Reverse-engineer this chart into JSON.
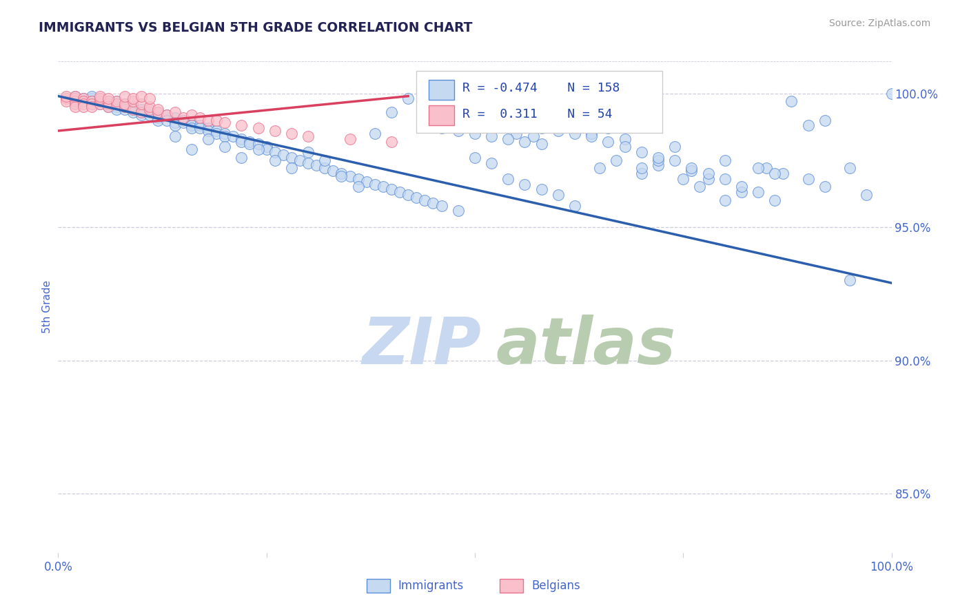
{
  "title": "IMMIGRANTS VS BELGIAN 5TH GRADE CORRELATION CHART",
  "source_text": "Source: ZipAtlas.com",
  "ylabel": "5th Grade",
  "xlim": [
    0.0,
    1.0
  ],
  "ylim": [
    0.828,
    1.012
  ],
  "yticks": [
    0.85,
    0.9,
    0.95,
    1.0
  ],
  "ytick_labels": [
    "85.0%",
    "90.0%",
    "95.0%",
    "100.0%"
  ],
  "blue_R": -0.474,
  "blue_N": 158,
  "pink_R": 0.311,
  "pink_N": 54,
  "blue_fill_color": "#c5d9f0",
  "pink_fill_color": "#f9c0cb",
  "blue_edge_color": "#5b8dd9",
  "pink_edge_color": "#e8708a",
  "blue_line_color": "#2b5fad",
  "pink_line_color": "#d94060",
  "background_color": "#ffffff",
  "title_color": "#222255",
  "axis_label_color": "#4466cc",
  "grid_color": "#ccccdd",
  "watermark_blue": "#c8d8f0",
  "watermark_green": "#b8ccb0",
  "legend_label_color": "#2244aa",
  "blue_scatter_x": [
    0.02,
    0.03,
    0.03,
    0.04,
    0.04,
    0.04,
    0.05,
    0.05,
    0.05,
    0.06,
    0.06,
    0.06,
    0.07,
    0.07,
    0.07,
    0.07,
    0.08,
    0.08,
    0.08,
    0.09,
    0.09,
    0.09,
    0.1,
    0.1,
    0.1,
    0.11,
    0.11,
    0.12,
    0.12,
    0.12,
    0.13,
    0.13,
    0.14,
    0.14,
    0.14,
    0.15,
    0.15,
    0.16,
    0.16,
    0.16,
    0.17,
    0.17,
    0.18,
    0.18,
    0.19,
    0.19,
    0.2,
    0.2,
    0.21,
    0.22,
    0.22,
    0.23,
    0.23,
    0.24,
    0.25,
    0.25,
    0.26,
    0.27,
    0.28,
    0.29,
    0.3,
    0.31,
    0.32,
    0.33,
    0.34,
    0.35,
    0.36,
    0.37,
    0.38,
    0.39,
    0.4,
    0.41,
    0.42,
    0.43,
    0.44,
    0.45,
    0.46,
    0.48,
    0.5,
    0.52,
    0.54,
    0.56,
    0.58,
    0.6,
    0.62,
    0.65,
    0.67,
    0.7,
    0.72,
    0.75,
    0.77,
    0.8,
    0.82,
    0.85,
    0.87,
    0.9,
    0.92,
    0.95,
    0.97,
    1.0,
    0.62,
    0.64,
    0.66,
    0.68,
    0.7,
    0.72,
    0.74,
    0.76,
    0.78,
    0.8,
    0.84,
    0.86,
    0.88,
    0.9,
    0.92,
    0.55,
    0.57,
    0.59,
    0.61,
    0.63,
    0.38,
    0.4,
    0.42,
    0.44,
    0.46,
    0.48,
    0.5,
    0.52,
    0.54,
    0.56,
    0.58,
    0.14,
    0.16,
    0.18,
    0.2,
    0.22,
    0.24,
    0.26,
    0.28,
    0.3,
    0.32,
    0.34,
    0.36,
    0.56,
    0.58,
    0.6,
    0.62,
    0.64,
    0.66,
    0.68,
    0.7,
    0.72,
    0.74,
    0.76,
    0.78,
    0.8,
    0.82,
    0.84,
    0.86,
    0.95
  ],
  "blue_scatter_y": [
    0.999,
    0.998,
    0.997,
    0.998,
    0.999,
    0.997,
    0.996,
    0.998,
    0.997,
    0.996,
    0.997,
    0.995,
    0.997,
    0.996,
    0.995,
    0.994,
    0.996,
    0.995,
    0.994,
    0.995,
    0.994,
    0.993,
    0.994,
    0.993,
    0.992,
    0.993,
    0.992,
    0.993,
    0.991,
    0.99,
    0.992,
    0.99,
    0.991,
    0.989,
    0.988,
    0.99,
    0.989,
    0.989,
    0.988,
    0.987,
    0.988,
    0.987,
    0.987,
    0.986,
    0.986,
    0.985,
    0.985,
    0.984,
    0.984,
    0.983,
    0.982,
    0.982,
    0.981,
    0.981,
    0.98,
    0.979,
    0.978,
    0.977,
    0.976,
    0.975,
    0.974,
    0.973,
    0.972,
    0.971,
    0.97,
    0.969,
    0.968,
    0.967,
    0.966,
    0.965,
    0.964,
    0.963,
    0.962,
    0.961,
    0.96,
    0.959,
    0.958,
    0.956,
    0.976,
    0.974,
    0.968,
    0.966,
    0.964,
    0.962,
    0.958,
    0.972,
    0.975,
    0.97,
    0.973,
    0.968,
    0.965,
    0.96,
    0.963,
    0.972,
    0.97,
    0.968,
    0.965,
    0.972,
    0.962,
    1.0,
    0.99,
    0.985,
    0.987,
    0.983,
    0.972,
    0.975,
    0.98,
    0.971,
    0.968,
    0.975,
    0.972,
    0.97,
    0.997,
    0.988,
    0.99,
    0.985,
    0.984,
    0.996,
    0.993,
    0.997,
    0.985,
    0.993,
    0.998,
    0.989,
    0.987,
    0.986,
    0.985,
    0.984,
    0.983,
    0.982,
    0.981,
    0.984,
    0.979,
    0.983,
    0.98,
    0.976,
    0.979,
    0.975,
    0.972,
    0.978,
    0.975,
    0.969,
    0.965,
    0.99,
    0.987,
    0.986,
    0.985,
    0.984,
    0.982,
    0.98,
    0.978,
    0.976,
    0.975,
    0.972,
    0.97,
    0.968,
    0.965,
    0.963,
    0.96,
    0.93
  ],
  "pink_scatter_x": [
    0.01,
    0.01,
    0.01,
    0.02,
    0.02,
    0.02,
    0.02,
    0.02,
    0.03,
    0.03,
    0.03,
    0.03,
    0.04,
    0.04,
    0.04,
    0.05,
    0.05,
    0.05,
    0.06,
    0.06,
    0.06,
    0.07,
    0.07,
    0.08,
    0.08,
    0.09,
    0.09,
    0.1,
    0.1,
    0.11,
    0.11,
    0.12,
    0.12,
    0.13,
    0.14,
    0.15,
    0.16,
    0.17,
    0.18,
    0.19,
    0.2,
    0.22,
    0.24,
    0.26,
    0.28,
    0.3,
    0.35,
    0.4,
    0.08,
    0.09,
    0.1,
    0.11,
    0.05,
    0.06
  ],
  "pink_scatter_y": [
    0.998,
    0.997,
    0.999,
    0.998,
    0.997,
    0.996,
    0.995,
    0.999,
    0.998,
    0.997,
    0.996,
    0.995,
    0.997,
    0.996,
    0.995,
    0.997,
    0.996,
    0.998,
    0.996,
    0.997,
    0.995,
    0.996,
    0.997,
    0.995,
    0.996,
    0.994,
    0.997,
    0.993,
    0.996,
    0.994,
    0.995,
    0.993,
    0.994,
    0.992,
    0.993,
    0.991,
    0.992,
    0.991,
    0.99,
    0.99,
    0.989,
    0.988,
    0.987,
    0.986,
    0.985,
    0.984,
    0.983,
    0.982,
    0.999,
    0.998,
    0.999,
    0.998,
    0.999,
    0.998
  ],
  "blue_line_x": [
    0.0,
    1.0
  ],
  "blue_line_y": [
    0.999,
    0.929
  ],
  "pink_line_x": [
    0.0,
    0.42
  ],
  "pink_line_y": [
    0.986,
    0.999
  ]
}
